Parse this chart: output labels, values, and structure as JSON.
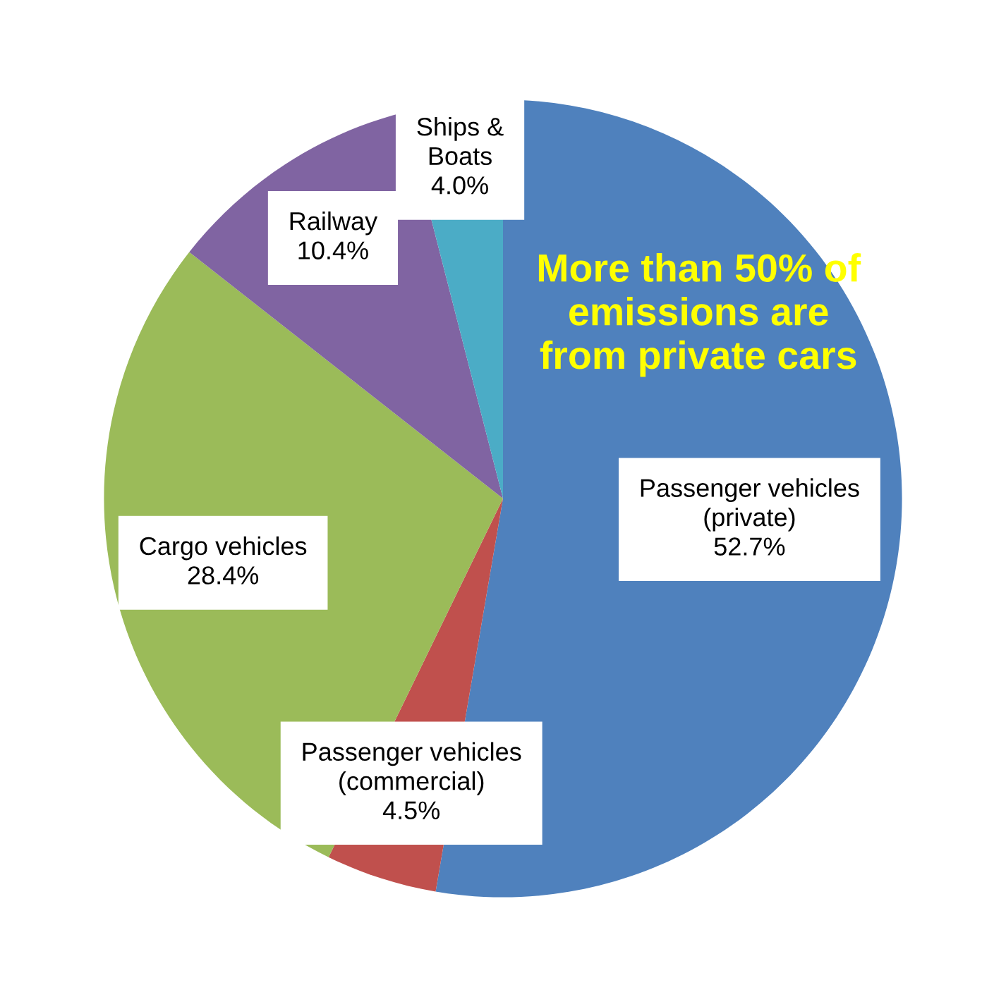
{
  "chart_data": {
    "type": "pie",
    "categories": [
      "Passenger vehicles\n(private)",
      "Passenger vehicles\n(commercial)",
      "Cargo vehicles",
      "Railway",
      "Ships &\nBoats"
    ],
    "values": [
      52.7,
      4.5,
      28.4,
      10.4,
      4.0
    ],
    "value_labels": [
      "52.7%",
      "4.5%",
      "28.4%",
      "10.4%",
      "4.0%"
    ],
    "colors": [
      "#4f81bd",
      "#c0504d",
      "#9bbb59",
      "#8064a2",
      "#4bacc6"
    ],
    "annotations": [
      "More than 50% of\nemissions are\nfrom private cars"
    ],
    "legend": false
  }
}
